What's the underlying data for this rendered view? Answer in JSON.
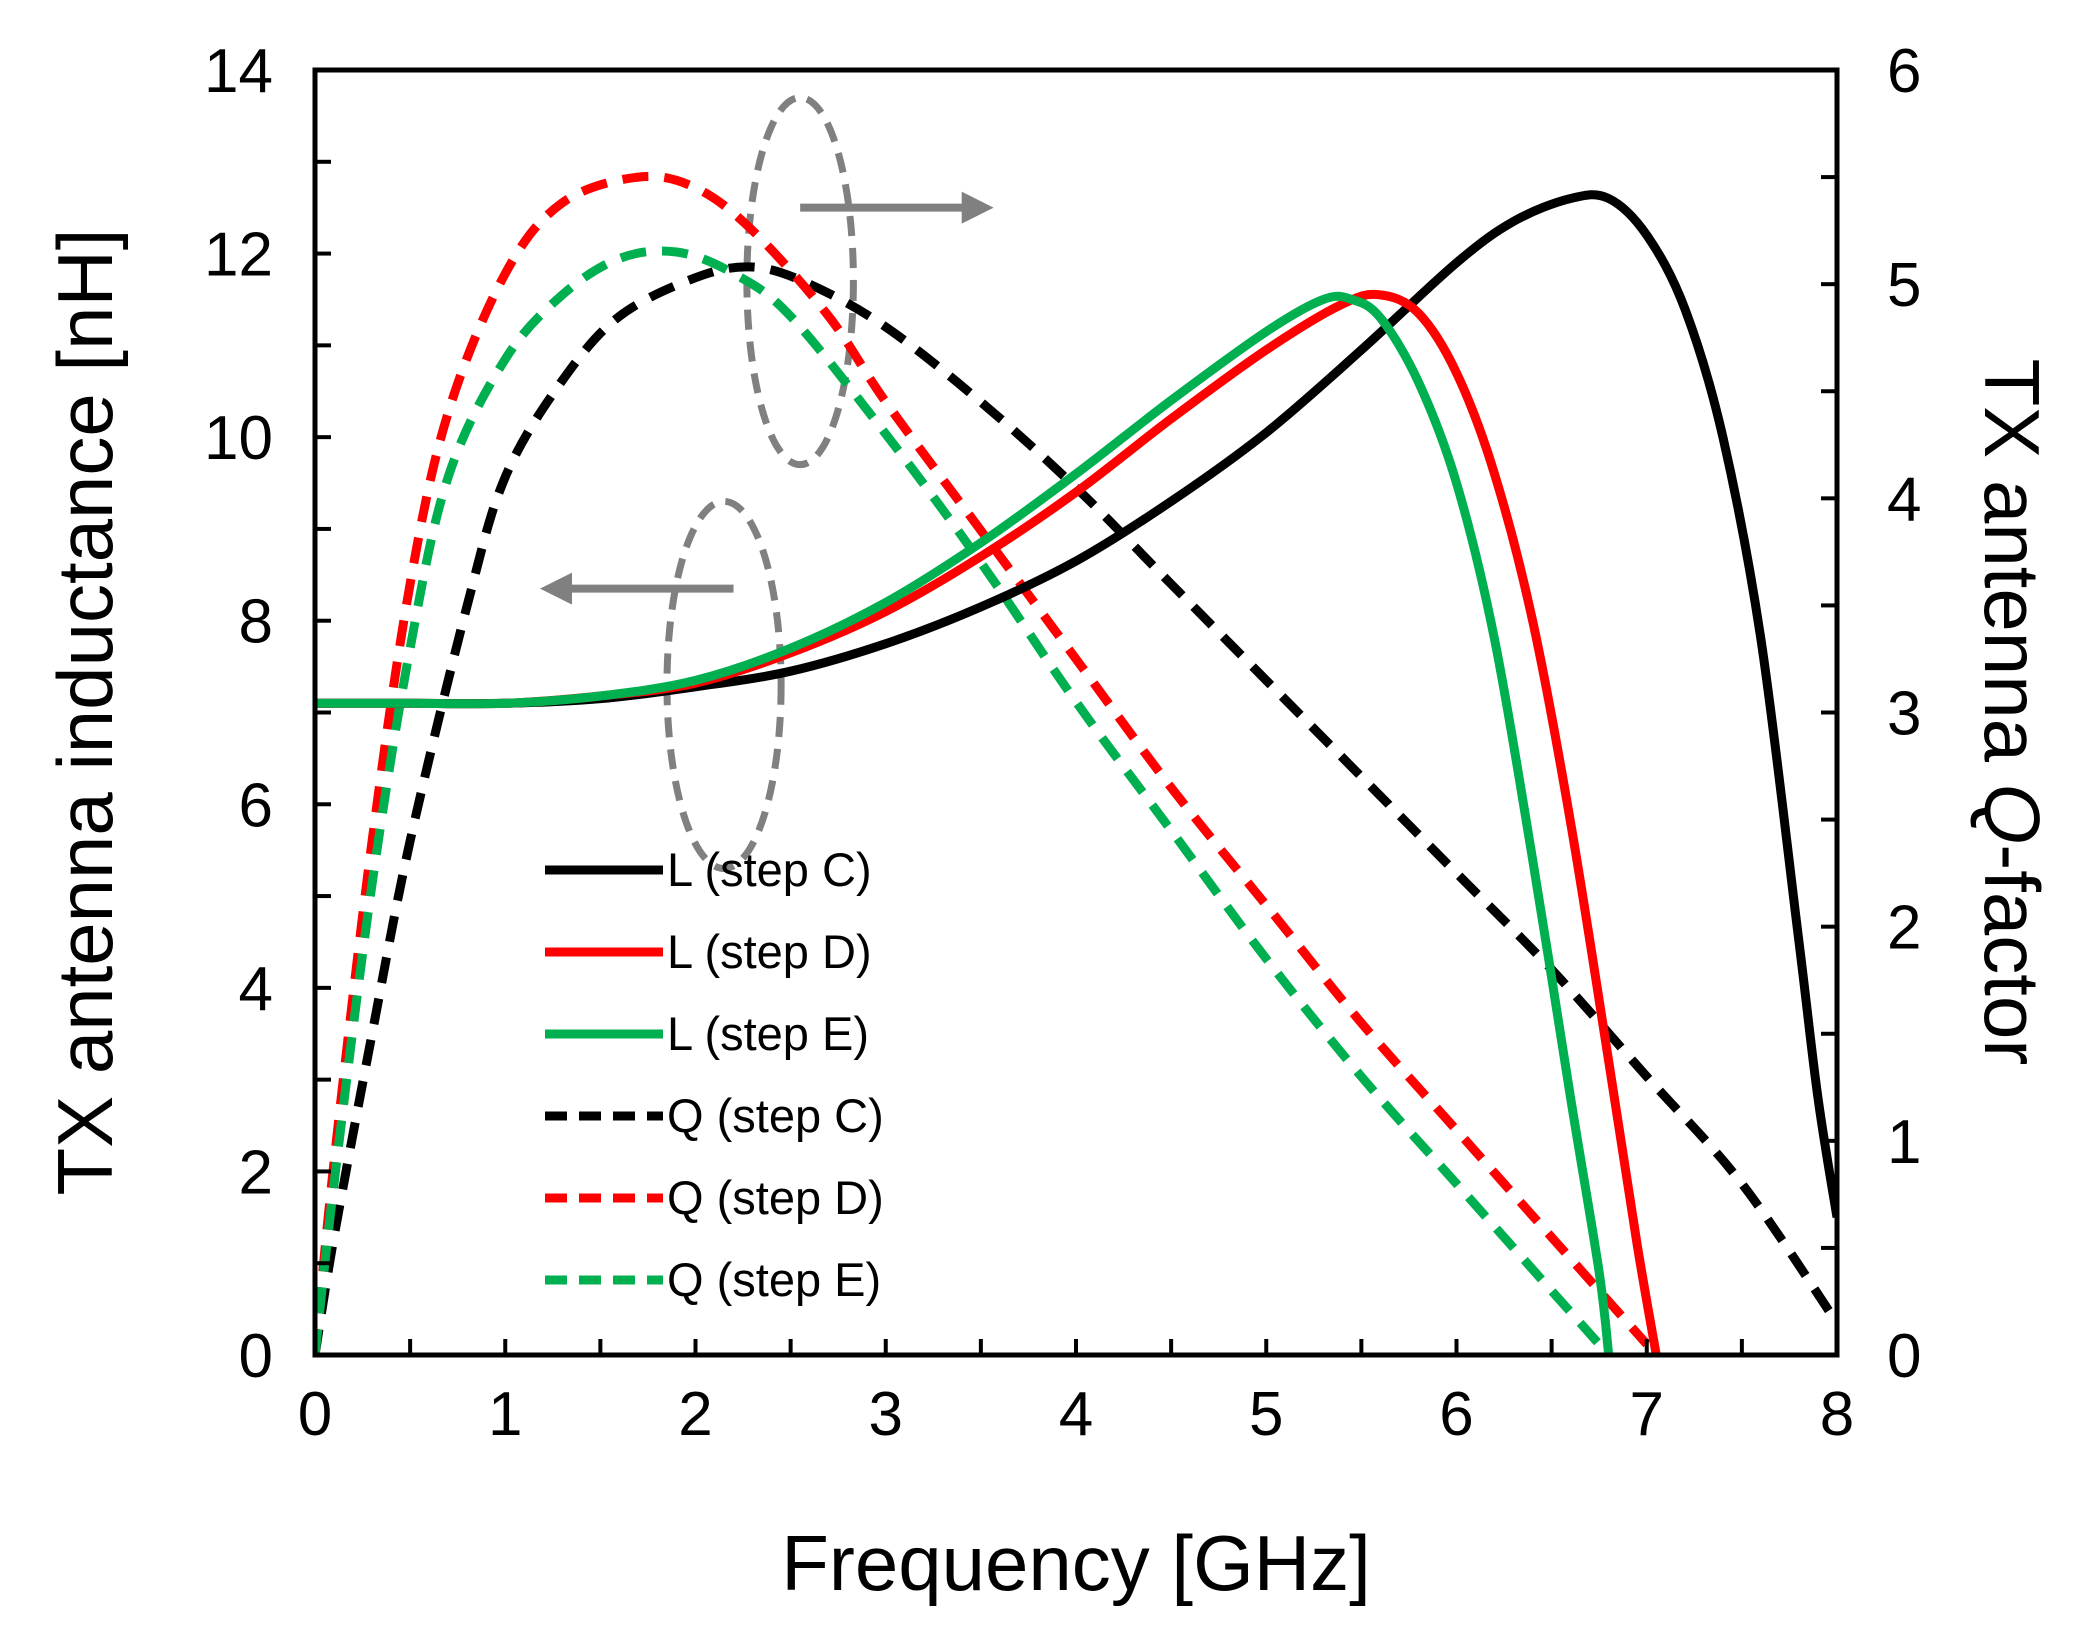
{
  "chart_data": {
    "type": "line",
    "xlabel": "Frequency [GHz]",
    "ylabel_left": "TX antenna inductance [nH]",
    "ylabel_right_prefix": "TX antenna ",
    "ylabel_right_italic": "Q",
    "ylabel_right_suffix": "-factor",
    "xlim": [
      0,
      8
    ],
    "ylim_left": [
      0,
      14
    ],
    "ylim_right": [
      0,
      6
    ],
    "x_ticks": [
      "0",
      "1",
      "2",
      "3",
      "4",
      "5",
      "6",
      "7",
      "8"
    ],
    "y_left_ticks": [
      "0",
      "2",
      "4",
      "6",
      "8",
      "10",
      "12",
      "14"
    ],
    "y_right_ticks": [
      "0",
      "1",
      "2",
      "3",
      "4",
      "5",
      "6"
    ],
    "grid": false,
    "legend_position": "bottom-left",
    "series": [
      {
        "name": "L (step C)",
        "axis": "left",
        "style": "solid",
        "color": "#000000",
        "points": [
          [
            0,
            7.1
          ],
          [
            0.5,
            7.1
          ],
          [
            1,
            7.1
          ],
          [
            1.5,
            7.15
          ],
          [
            2,
            7.28
          ],
          [
            2.5,
            7.45
          ],
          [
            3,
            7.75
          ],
          [
            3.5,
            8.15
          ],
          [
            4,
            8.65
          ],
          [
            4.5,
            9.3
          ],
          [
            5,
            10.05
          ],
          [
            5.5,
            10.95
          ],
          [
            6,
            11.9
          ],
          [
            6.3,
            12.35
          ],
          [
            6.6,
            12.6
          ],
          [
            6.8,
            12.6
          ],
          [
            7,
            12.2
          ],
          [
            7.2,
            11.4
          ],
          [
            7.4,
            10.0
          ],
          [
            7.6,
            7.8
          ],
          [
            7.8,
            4.5
          ],
          [
            7.9,
            2.8
          ],
          [
            8,
            1.5
          ]
        ]
      },
      {
        "name": "L (step D)",
        "axis": "left",
        "style": "solid",
        "color": "#ff0000",
        "points": [
          [
            0,
            7.1
          ],
          [
            0.5,
            7.1
          ],
          [
            1,
            7.1
          ],
          [
            1.5,
            7.18
          ],
          [
            2,
            7.32
          ],
          [
            2.5,
            7.65
          ],
          [
            3,
            8.1
          ],
          [
            3.5,
            8.7
          ],
          [
            4,
            9.4
          ],
          [
            4.5,
            10.2
          ],
          [
            5,
            10.95
          ],
          [
            5.4,
            11.45
          ],
          [
            5.6,
            11.55
          ],
          [
            5.8,
            11.35
          ],
          [
            6,
            10.7
          ],
          [
            6.2,
            9.6
          ],
          [
            6.4,
            8.0
          ],
          [
            6.6,
            5.8
          ],
          [
            6.8,
            3.2
          ],
          [
            6.95,
            1.2
          ],
          [
            7.05,
            0
          ]
        ]
      },
      {
        "name": "L (step E)",
        "axis": "left",
        "style": "solid",
        "color": "#00b050",
        "points": [
          [
            0,
            7.1
          ],
          [
            0.5,
            7.1
          ],
          [
            1,
            7.1
          ],
          [
            1.5,
            7.18
          ],
          [
            2,
            7.35
          ],
          [
            2.5,
            7.7
          ],
          [
            3,
            8.2
          ],
          [
            3.5,
            8.85
          ],
          [
            4,
            9.6
          ],
          [
            4.5,
            10.4
          ],
          [
            5,
            11.15
          ],
          [
            5.3,
            11.5
          ],
          [
            5.45,
            11.5
          ],
          [
            5.6,
            11.3
          ],
          [
            5.8,
            10.6
          ],
          [
            6,
            9.5
          ],
          [
            6.2,
            7.8
          ],
          [
            6.4,
            5.4
          ],
          [
            6.6,
            2.8
          ],
          [
            6.75,
            0.9
          ],
          [
            6.8,
            0
          ]
        ]
      },
      {
        "name": "Q (step C)",
        "axis": "right",
        "style": "dashed",
        "color": "#000000",
        "points": [
          [
            0,
            0
          ],
          [
            0.1,
            0.55
          ],
          [
            0.3,
            1.5
          ],
          [
            0.5,
            2.4
          ],
          [
            0.8,
            3.5
          ],
          [
            1,
            4.1
          ],
          [
            1.3,
            4.55
          ],
          [
            1.6,
            4.85
          ],
          [
            2,
            5.03
          ],
          [
            2.3,
            5.08
          ],
          [
            2.6,
            5.0
          ],
          [
            3,
            4.8
          ],
          [
            3.5,
            4.45
          ],
          [
            4,
            4.05
          ],
          [
            4.5,
            3.6
          ],
          [
            5,
            3.15
          ],
          [
            5.5,
            2.7
          ],
          [
            6,
            2.25
          ],
          [
            6.5,
            1.8
          ],
          [
            7,
            1.3
          ],
          [
            7.5,
            0.8
          ],
          [
            8,
            0.15
          ]
        ]
      },
      {
        "name": "Q (step D)",
        "axis": "right",
        "style": "dashed",
        "color": "#ff0000",
        "points": [
          [
            0,
            0
          ],
          [
            0.1,
            0.9
          ],
          [
            0.3,
            2.4
          ],
          [
            0.5,
            3.6
          ],
          [
            0.7,
            4.4
          ],
          [
            1,
            5.05
          ],
          [
            1.3,
            5.38
          ],
          [
            1.7,
            5.5
          ],
          [
            2,
            5.45
          ],
          [
            2.3,
            5.25
          ],
          [
            2.7,
            4.85
          ],
          [
            3,
            4.45
          ],
          [
            3.5,
            3.85
          ],
          [
            4,
            3.25
          ],
          [
            4.5,
            2.65
          ],
          [
            5,
            2.1
          ],
          [
            5.5,
            1.55
          ],
          [
            6,
            1.05
          ],
          [
            6.5,
            0.55
          ],
          [
            7,
            0.05
          ]
        ]
      },
      {
        "name": "Q (step E)",
        "axis": "right",
        "style": "dashed",
        "color": "#00b050",
        "points": [
          [
            0,
            0
          ],
          [
            0.1,
            0.8
          ],
          [
            0.3,
            2.2
          ],
          [
            0.5,
            3.3
          ],
          [
            0.7,
            4.1
          ],
          [
            1,
            4.65
          ],
          [
            1.3,
            4.95
          ],
          [
            1.6,
            5.12
          ],
          [
            1.9,
            5.15
          ],
          [
            2.2,
            5.05
          ],
          [
            2.5,
            4.85
          ],
          [
            3,
            4.3
          ],
          [
            3.5,
            3.7
          ],
          [
            4,
            3.05
          ],
          [
            4.5,
            2.45
          ],
          [
            5,
            1.85
          ],
          [
            5.5,
            1.3
          ],
          [
            6,
            0.8
          ],
          [
            6.5,
            0.3
          ],
          [
            6.8,
            0
          ]
        ]
      }
    ],
    "annotations": [
      {
        "shape": "ellipse",
        "style": "dashed",
        "color": "#808080",
        "cx": 2.55,
        "cy_left": 11.7,
        "rx": 0.28,
        "ry_left": 2.0
      },
      {
        "shape": "arrow",
        "color": "#808080",
        "from": [
          2.55,
          12.5
        ],
        "to": [
          3.5,
          12.5
        ],
        "axis": "left",
        "meaning": "points to right axis"
      },
      {
        "shape": "ellipse",
        "style": "dashed",
        "color": "#808080",
        "cx": 2.15,
        "cy_left": 7.3,
        "rx": 0.3,
        "ry_left": 2.0
      },
      {
        "shape": "arrow",
        "color": "#808080",
        "from": [
          2.2,
          8.35
        ],
        "to": [
          1.25,
          8.35
        ],
        "axis": "left",
        "meaning": "points to left axis"
      }
    ]
  }
}
